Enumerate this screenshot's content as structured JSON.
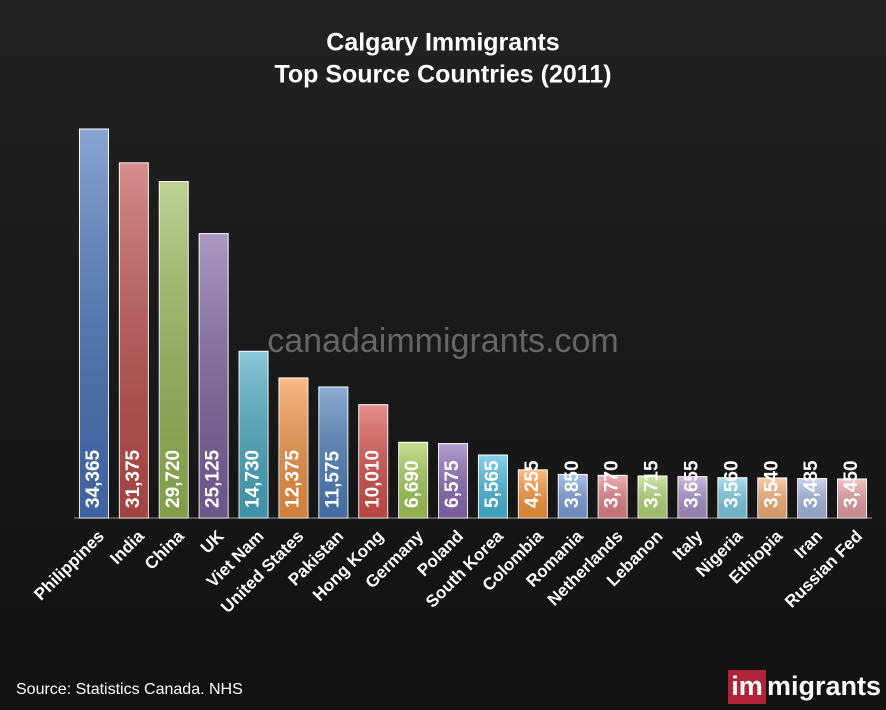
{
  "chart_data": {
    "type": "bar",
    "title": "Calgary Immigrants",
    "subtitle": "Top Source Countries (2011)",
    "categories": [
      "Philippines",
      "India",
      "China",
      "UK",
      "Viet Nam",
      "United States",
      "Pakistan",
      "Hong Kong",
      "Germany",
      "Poland",
      "South Korea",
      "Colombia",
      "Romania",
      "Netherlands",
      "Lebanon",
      "Italy",
      "Nigeria",
      "Ethiopia",
      "Iran",
      "Russian Fed"
    ],
    "values": [
      34365,
      31375,
      29720,
      25125,
      14730,
      12375,
      11575,
      10010,
      6690,
      6575,
      5565,
      4255,
      3850,
      3770,
      3715,
      3655,
      3560,
      3540,
      3485,
      3450
    ],
    "value_labels": [
      "34,365",
      "31,375",
      "29,720",
      "25,125",
      "14,730",
      "12,375",
      "11,575",
      "10,010",
      "6,690",
      "6,575",
      "5,565",
      "4,255",
      "3,850",
      "3,770",
      "3,715",
      "3,655",
      "3,560",
      "3,540",
      "3,485",
      "3,450"
    ],
    "colors": [
      "#4a74bb",
      "#c0504d",
      "#9bbb59",
      "#8064a2",
      "#4bacc6",
      "#f79646",
      "#4f81bd",
      "#d9534f",
      "#a8cf5a",
      "#8e6cb8",
      "#49bde0",
      "#ff9a3c",
      "#7fa3e0",
      "#e8868a",
      "#b9dc7a",
      "#ad96cf",
      "#7fd0ea",
      "#fbb47a",
      "#a9bde3",
      "#eaa3a5"
    ],
    "watermark": "canadaimmigrants.com",
    "source": "Source: Statistics Canada. NHS",
    "logo": [
      "im",
      "migrants"
    ]
  }
}
